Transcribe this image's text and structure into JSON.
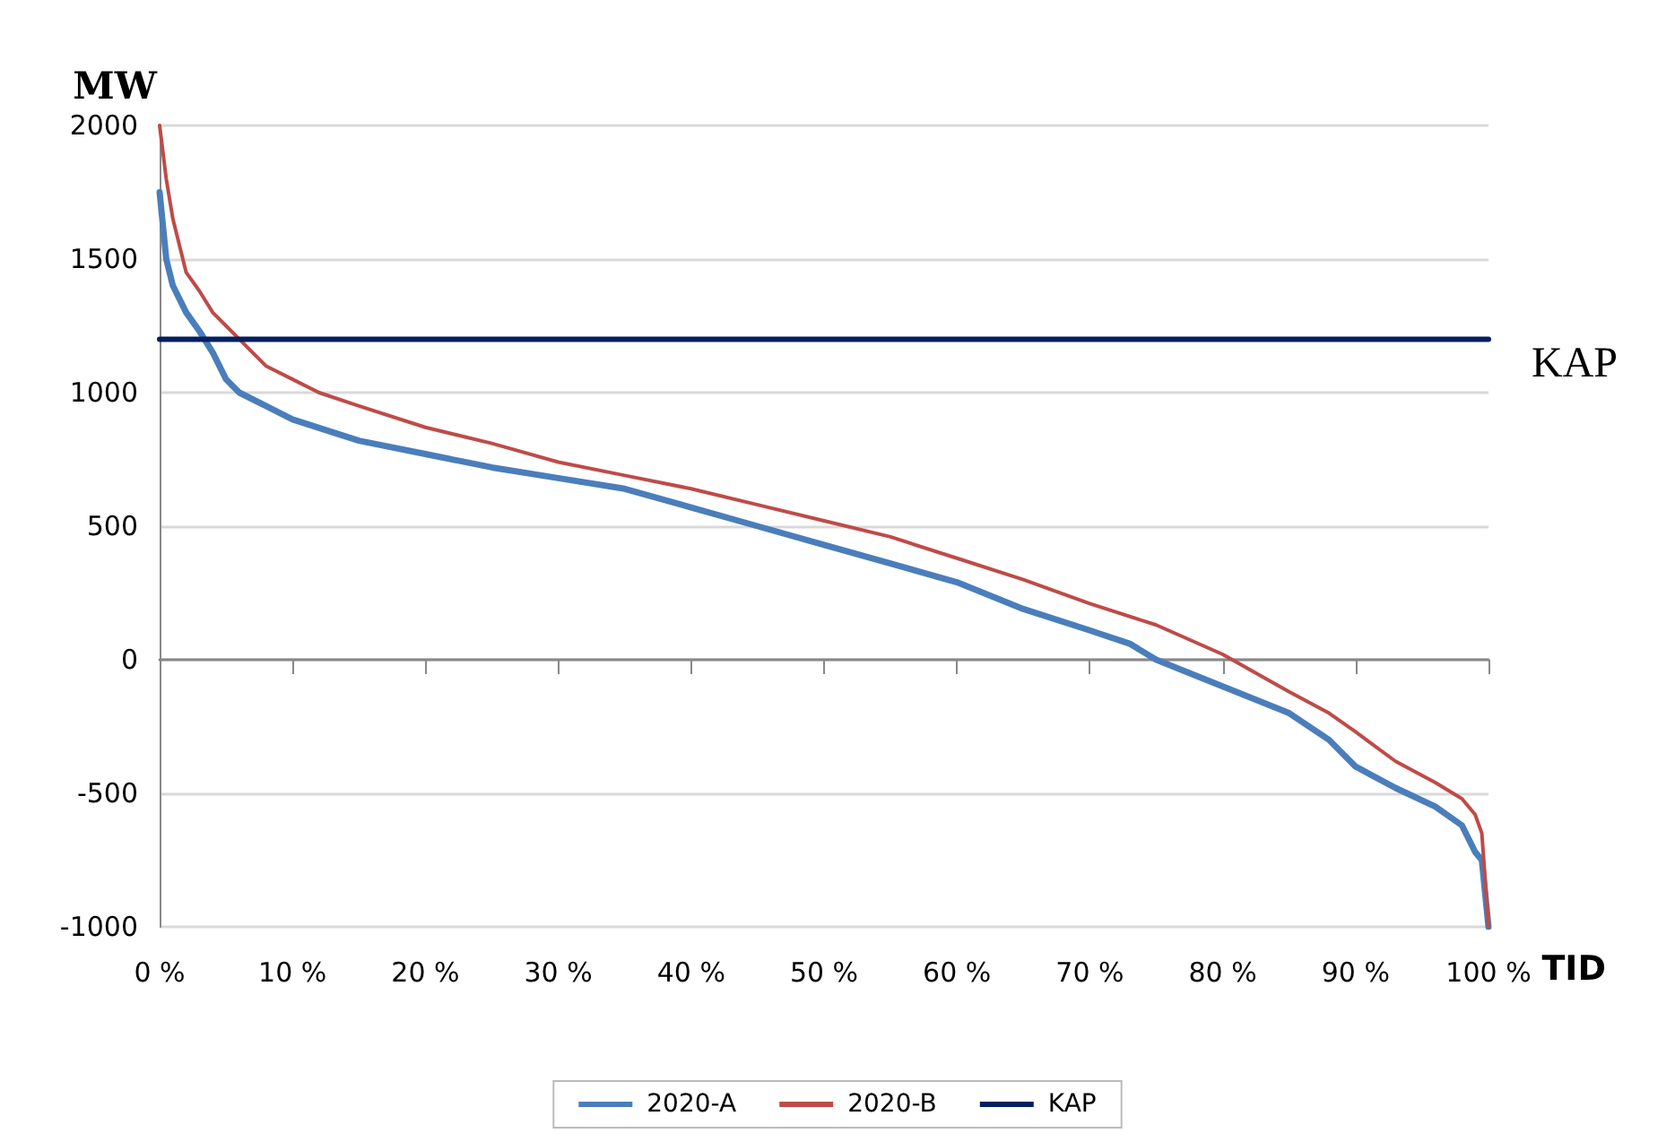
{
  "chart_data": {
    "type": "line",
    "xlabel": "TID",
    "ylabel": "MW",
    "xlim": [
      0,
      100
    ],
    "ylim": [
      -1000,
      2000
    ],
    "xticks": [
      {
        "value": 0,
        "label": "0 %"
      },
      {
        "value": 10,
        "label": "10 %"
      },
      {
        "value": 20,
        "label": "20 %"
      },
      {
        "value": 30,
        "label": "30 %"
      },
      {
        "value": 40,
        "label": "40 %"
      },
      {
        "value": 50,
        "label": "50 %"
      },
      {
        "value": 60,
        "label": "60 %"
      },
      {
        "value": 70,
        "label": "70 %"
      },
      {
        "value": 80,
        "label": "80 %"
      },
      {
        "value": 90,
        "label": "90 %"
      },
      {
        "value": 100,
        "label": "100 %"
      }
    ],
    "yticks": [
      -1000,
      -500,
      0,
      500,
      1000,
      1500,
      2000
    ],
    "grid": "y",
    "legend": "bottom",
    "marker": "none",
    "line_style": "solid",
    "annotations": [
      {
        "text": "KAP",
        "x": 100,
        "y": 1200
      }
    ],
    "series": [
      {
        "name": "2020-A",
        "color": "#4a7ebb",
        "x": [
          0,
          0.5,
          1,
          2,
          3,
          4,
          5,
          6,
          8,
          10,
          15,
          20,
          25,
          30,
          35,
          40,
          45,
          50,
          55,
          60,
          65,
          70,
          73,
          75,
          80,
          85,
          88,
          90,
          93,
          96,
          98,
          99,
          99.5,
          100
        ],
        "values": [
          1750,
          1500,
          1400,
          1300,
          1230,
          1150,
          1050,
          1000,
          950,
          900,
          820,
          770,
          720,
          680,
          640,
          570,
          500,
          430,
          360,
          290,
          190,
          110,
          60,
          0,
          -100,
          -200,
          -300,
          -400,
          -480,
          -550,
          -620,
          -720,
          -750,
          -1000
        ]
      },
      {
        "name": "2020-B",
        "color": "#be4b48",
        "x": [
          0,
          0.5,
          1,
          2,
          3,
          4,
          5,
          6,
          7,
          8,
          10,
          12,
          15,
          20,
          25,
          30,
          35,
          40,
          45,
          50,
          55,
          60,
          65,
          70,
          75,
          80,
          85,
          88,
          90,
          93,
          96,
          98,
          99,
          99.5,
          100
        ],
        "values": [
          2000,
          1800,
          1650,
          1450,
          1380,
          1300,
          1250,
          1200,
          1150,
          1100,
          1050,
          1000,
          950,
          870,
          810,
          740,
          690,
          640,
          580,
          520,
          460,
          380,
          300,
          210,
          130,
          20,
          -120,
          -200,
          -270,
          -380,
          -460,
          -520,
          -580,
          -650,
          -1000
        ]
      },
      {
        "name": "KAP",
        "color": "#002060",
        "x": [
          0,
          100
        ],
        "values": [
          1200,
          1200
        ]
      }
    ]
  }
}
